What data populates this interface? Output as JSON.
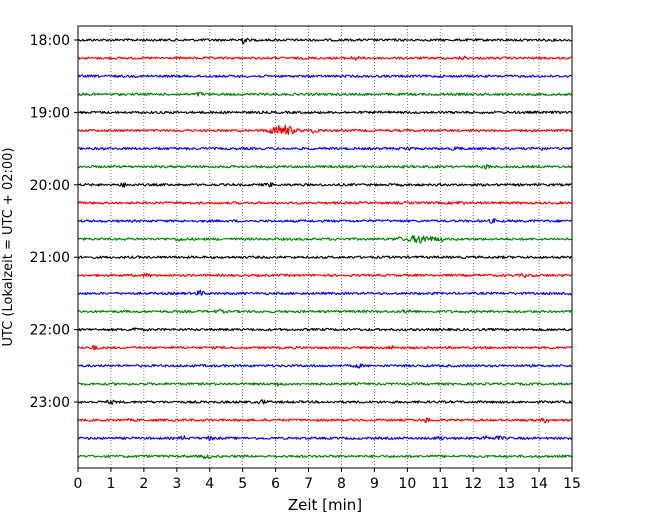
{
  "chart_data": {
    "type": "line",
    "subtype": "helicorder-seismogram",
    "xlabel": "Zeit  [min]",
    "ylabel": "UTC (Lokalzeit = UTC + 02:00)",
    "xlim": [
      0,
      15
    ],
    "x_ticks": [
      "0",
      "1",
      "2",
      "3",
      "4",
      "5",
      "6",
      "7",
      "8",
      "9",
      "10",
      "11",
      "12",
      "13",
      "14",
      "15"
    ],
    "y_tick_labels": [
      "18:00",
      "19:00",
      "20:00",
      "21:00",
      "22:00",
      "23:00"
    ],
    "grid": "vertical dotted lines at each minute",
    "color_cycle": [
      "#000000",
      "#ff0000",
      "#0000ff",
      "#008000"
    ],
    "traces": [
      {
        "start": "18:00",
        "color": "#000000",
        "events": [
          [
            5.0,
            3.0
          ]
        ]
      },
      {
        "start": "18:15",
        "color": "#ff0000",
        "events": [
          [
            8.4,
            1.6
          ],
          [
            11.7,
            1.2
          ]
        ]
      },
      {
        "start": "18:30",
        "color": "#0000ff",
        "events": []
      },
      {
        "start": "18:45",
        "color": "#008000",
        "events": [
          [
            3.7,
            1.3
          ]
        ]
      },
      {
        "start": "19:00",
        "color": "#000000",
        "events": []
      },
      {
        "start": "19:15",
        "color": "#ff0000",
        "events": [
          [
            6.2,
            5.0
          ],
          [
            7.2,
            2.0
          ]
        ]
      },
      {
        "start": "19:30",
        "color": "#0000ff",
        "events": [
          [
            10.0,
            1.5
          ],
          [
            11.5,
            1.4
          ],
          [
            14.0,
            1.6
          ]
        ]
      },
      {
        "start": "19:45",
        "color": "#008000",
        "events": [
          [
            12.4,
            1.6
          ]
        ]
      },
      {
        "start": "20:00",
        "color": "#000000",
        "events": [
          [
            1.4,
            1.3
          ],
          [
            5.8,
            1.5
          ]
        ]
      },
      {
        "start": "20:15",
        "color": "#ff0000",
        "events": [
          [
            11.6,
            1.3
          ]
        ]
      },
      {
        "start": "20:30",
        "color": "#0000ff",
        "events": [
          [
            12.6,
            1.3
          ]
        ]
      },
      {
        "start": "20:45",
        "color": "#008000",
        "events": [
          [
            3.1,
            1.3
          ],
          [
            9.7,
            1.4
          ],
          [
            10.4,
            3.5
          ],
          [
            11.0,
            1.8
          ]
        ]
      },
      {
        "start": "21:00",
        "color": "#000000",
        "events": []
      },
      {
        "start": "21:15",
        "color": "#ff0000",
        "events": [
          [
            2.1,
            1.3
          ],
          [
            13.6,
            1.2
          ]
        ]
      },
      {
        "start": "21:30",
        "color": "#0000ff",
        "events": [
          [
            3.7,
            2.2
          ],
          [
            14.9,
            1.3
          ]
        ]
      },
      {
        "start": "21:45",
        "color": "#008000",
        "events": [
          [
            4.3,
            1.4
          ],
          [
            10.0,
            1.4
          ]
        ]
      },
      {
        "start": "22:00",
        "color": "#000000",
        "events": [
          [
            1.7,
            1.4
          ]
        ]
      },
      {
        "start": "22:15",
        "color": "#ff0000",
        "events": [
          [
            0.5,
            1.5
          ],
          [
            9.5,
            1.3
          ]
        ]
      },
      {
        "start": "22:30",
        "color": "#0000ff",
        "events": [
          [
            8.5,
            1.3
          ]
        ]
      },
      {
        "start": "22:45",
        "color": "#008000",
        "events": [
          [
            6.1,
            1.4
          ]
        ]
      },
      {
        "start": "23:00",
        "color": "#000000",
        "events": [
          [
            1.0,
            1.3
          ],
          [
            5.6,
            1.6
          ]
        ]
      },
      {
        "start": "23:15",
        "color": "#ff0000",
        "events": [
          [
            10.6,
            1.8
          ],
          [
            14.2,
            1.8
          ]
        ]
      },
      {
        "start": "23:30",
        "color": "#0000ff",
        "events": [
          [
            3.2,
            1.5
          ],
          [
            4.0,
            1.3
          ],
          [
            11.0,
            1.4
          ],
          [
            12.4,
            2.0
          ],
          [
            12.8,
            1.4
          ]
        ]
      },
      {
        "start": "23:45",
        "color": "#008000",
        "events": [
          [
            3.9,
            1.7
          ]
        ]
      }
    ]
  }
}
